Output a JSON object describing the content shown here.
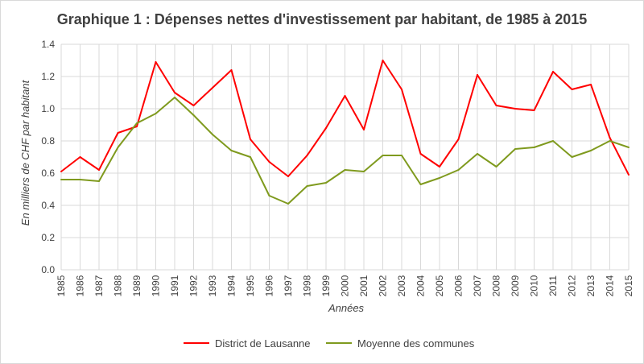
{
  "chart_data": {
    "type": "line",
    "title": "Graphique 1 : Dépenses nettes d'investissement par habitant, de 1985 à 2015",
    "xlabel": "Années",
    "ylabel": "En milliers de CHF par habitant",
    "ylim": [
      0,
      1.4
    ],
    "yticks": [
      "0.0",
      "0.2",
      "0.4",
      "0.6",
      "0.8",
      "1.0",
      "1.2",
      "1.4"
    ],
    "grid": true,
    "legend_position": "bottom",
    "categories": [
      "1985",
      "1986",
      "1987",
      "1988",
      "1989",
      "1990",
      "1991",
      "1992",
      "1993",
      "1994",
      "1995",
      "1996",
      "1997",
      "1998",
      "1999",
      "2000",
      "2001",
      "2002",
      "2003",
      "2004",
      "2005",
      "2006",
      "2007",
      "2008",
      "2009",
      "2010",
      "2011",
      "2012",
      "2013",
      "2014",
      "2015"
    ],
    "series": [
      {
        "name": "District de Lausanne",
        "color": "#ff0000",
        "values": [
          0.61,
          0.7,
          0.62,
          0.85,
          0.89,
          1.29,
          1.1,
          1.02,
          1.13,
          1.24,
          0.81,
          0.67,
          0.58,
          0.71,
          0.88,
          1.08,
          0.87,
          1.3,
          1.12,
          0.72,
          0.64,
          0.81,
          1.21,
          1.02,
          1.0,
          0.99,
          1.23,
          1.12,
          1.15,
          0.82,
          0.59
        ]
      },
      {
        "name": "Moyenne des communes",
        "color": "#7f9a1e",
        "values": [
          0.56,
          0.56,
          0.55,
          0.76,
          0.91,
          0.97,
          1.07,
          0.96,
          0.84,
          0.74,
          0.7,
          0.46,
          0.41,
          0.52,
          0.54,
          0.62,
          0.61,
          0.71,
          0.71,
          0.53,
          0.57,
          0.62,
          0.72,
          0.64,
          0.75,
          0.76,
          0.8,
          0.7,
          0.74,
          0.8,
          0.76
        ]
      }
    ]
  }
}
